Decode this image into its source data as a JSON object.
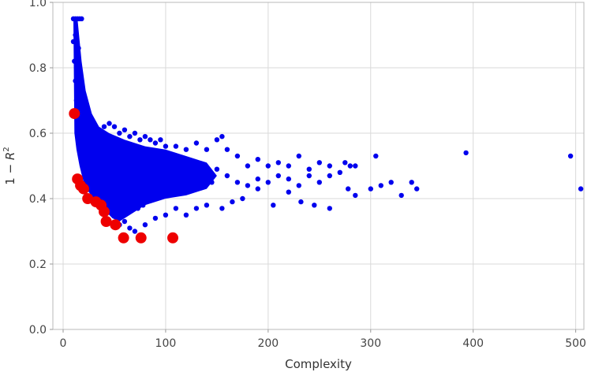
{
  "chart_data": {
    "type": "scatter",
    "title": "",
    "xlabel": "Complexity",
    "ylabel_prefix": "1 − ",
    "ylabel_var": "R",
    "ylabel_sup": "2",
    "xlim": [
      -10,
      508
    ],
    "ylim": [
      0.0,
      1.0
    ],
    "xticks": [
      0,
      100,
      200,
      300,
      400,
      500
    ],
    "xtick_labels": [
      "0",
      "100",
      "200",
      "300",
      "400",
      "500"
    ],
    "yticks": [
      0.0,
      0.2,
      0.4,
      0.6,
      0.8,
      1.0
    ],
    "ytick_labels": [
      "0.0",
      "0.2",
      "0.4",
      "0.6",
      "0.8",
      "1.0"
    ],
    "grid": true,
    "legend": "none",
    "series": [
      {
        "color": "#0000ee",
        "marker": "small-dot",
        "points": [
          [
            10,
            0.95
          ],
          [
            12,
            0.95
          ],
          [
            14,
            0.95
          ],
          [
            16,
            0.95
          ],
          [
            18,
            0.95
          ],
          [
            10,
            0.88
          ],
          [
            12,
            0.9
          ],
          [
            15,
            0.86
          ],
          [
            11,
            0.82
          ],
          [
            14,
            0.8
          ],
          [
            12,
            0.76
          ],
          [
            16,
            0.74
          ],
          [
            18,
            0.72
          ],
          [
            13,
            0.7
          ],
          [
            20,
            0.69
          ],
          [
            22,
            0.67
          ],
          [
            25,
            0.66
          ],
          [
            15,
            0.64
          ],
          [
            28,
            0.63
          ],
          [
            30,
            0.62
          ],
          [
            19,
            0.6
          ],
          [
            35,
            0.6
          ],
          [
            40,
            0.62
          ],
          [
            45,
            0.63
          ],
          [
            50,
            0.62
          ],
          [
            55,
            0.6
          ],
          [
            60,
            0.61
          ],
          [
            65,
            0.59
          ],
          [
            70,
            0.6
          ],
          [
            75,
            0.58
          ],
          [
            80,
            0.59
          ],
          [
            85,
            0.58
          ],
          [
            90,
            0.57
          ],
          [
            95,
            0.58
          ],
          [
            100,
            0.56
          ],
          [
            110,
            0.56
          ],
          [
            120,
            0.55
          ],
          [
            130,
            0.57
          ],
          [
            140,
            0.55
          ],
          [
            150,
            0.58
          ],
          [
            155,
            0.59
          ],
          [
            160,
            0.55
          ],
          [
            170,
            0.53
          ],
          [
            180,
            0.5
          ],
          [
            190,
            0.52
          ],
          [
            200,
            0.5
          ],
          [
            210,
            0.51
          ],
          [
            220,
            0.5
          ],
          [
            230,
            0.53
          ],
          [
            240,
            0.49
          ],
          [
            250,
            0.51
          ],
          [
            260,
            0.5
          ],
          [
            270,
            0.48
          ],
          [
            275,
            0.51
          ],
          [
            280,
            0.5
          ],
          [
            285,
            0.5
          ],
          [
            305,
            0.53
          ],
          [
            310,
            0.44
          ],
          [
            320,
            0.45
          ],
          [
            330,
            0.41
          ],
          [
            340,
            0.45
          ],
          [
            345,
            0.43
          ],
          [
            393,
            0.54
          ],
          [
            495,
            0.53
          ],
          [
            505,
            0.43
          ],
          [
            278,
            0.43
          ],
          [
            285,
            0.41
          ],
          [
            300,
            0.43
          ],
          [
            260,
            0.37
          ],
          [
            245,
            0.38
          ],
          [
            232,
            0.39
          ],
          [
            220,
            0.42
          ],
          [
            205,
            0.38
          ],
          [
            190,
            0.43
          ],
          [
            175,
            0.4
          ],
          [
            165,
            0.39
          ],
          [
            155,
            0.37
          ],
          [
            140,
            0.38
          ],
          [
            130,
            0.37
          ],
          [
            120,
            0.35
          ],
          [
            110,
            0.37
          ],
          [
            100,
            0.35
          ],
          [
            90,
            0.34
          ],
          [
            80,
            0.32
          ],
          [
            70,
            0.3
          ],
          [
            65,
            0.31
          ],
          [
            60,
            0.33
          ],
          [
            55,
            0.32
          ],
          [
            50,
            0.35
          ],
          [
            45,
            0.36
          ],
          [
            40,
            0.38
          ],
          [
            35,
            0.4
          ],
          [
            30,
            0.42
          ],
          [
            25,
            0.44
          ],
          [
            20,
            0.48
          ],
          [
            18,
            0.52
          ],
          [
            22,
            0.55
          ],
          [
            27,
            0.5
          ],
          [
            33,
            0.48
          ],
          [
            38,
            0.46
          ],
          [
            43,
            0.44
          ],
          [
            48,
            0.42
          ],
          [
            53,
            0.41
          ],
          [
            58,
            0.4
          ],
          [
            63,
            0.39
          ],
          [
            68,
            0.38
          ],
          [
            73,
            0.37
          ],
          [
            78,
            0.38
          ],
          [
            83,
            0.4
          ],
          [
            88,
            0.42
          ],
          [
            93,
            0.44
          ],
          [
            98,
            0.46
          ],
          [
            105,
            0.48
          ],
          [
            112,
            0.5
          ],
          [
            118,
            0.46
          ],
          [
            125,
            0.44
          ],
          [
            135,
            0.47
          ],
          [
            145,
            0.45
          ],
          [
            150,
            0.49
          ],
          [
            160,
            0.47
          ],
          [
            170,
            0.45
          ],
          [
            180,
            0.44
          ],
          [
            190,
            0.46
          ],
          [
            200,
            0.45
          ],
          [
            210,
            0.47
          ],
          [
            220,
            0.46
          ],
          [
            230,
            0.44
          ],
          [
            240,
            0.47
          ],
          [
            250,
            0.45
          ],
          [
            260,
            0.47
          ]
        ]
      },
      {
        "color": "#ee0000",
        "marker": "large-dot",
        "points": [
          [
            11,
            0.66
          ],
          [
            14,
            0.46
          ],
          [
            17,
            0.44
          ],
          [
            20,
            0.43
          ],
          [
            24,
            0.4
          ],
          [
            32,
            0.39
          ],
          [
            37,
            0.38
          ],
          [
            40,
            0.36
          ],
          [
            42,
            0.33
          ],
          [
            51,
            0.32
          ],
          [
            59,
            0.28
          ],
          [
            76,
            0.28
          ],
          [
            107,
            0.28
          ]
        ]
      }
    ]
  }
}
